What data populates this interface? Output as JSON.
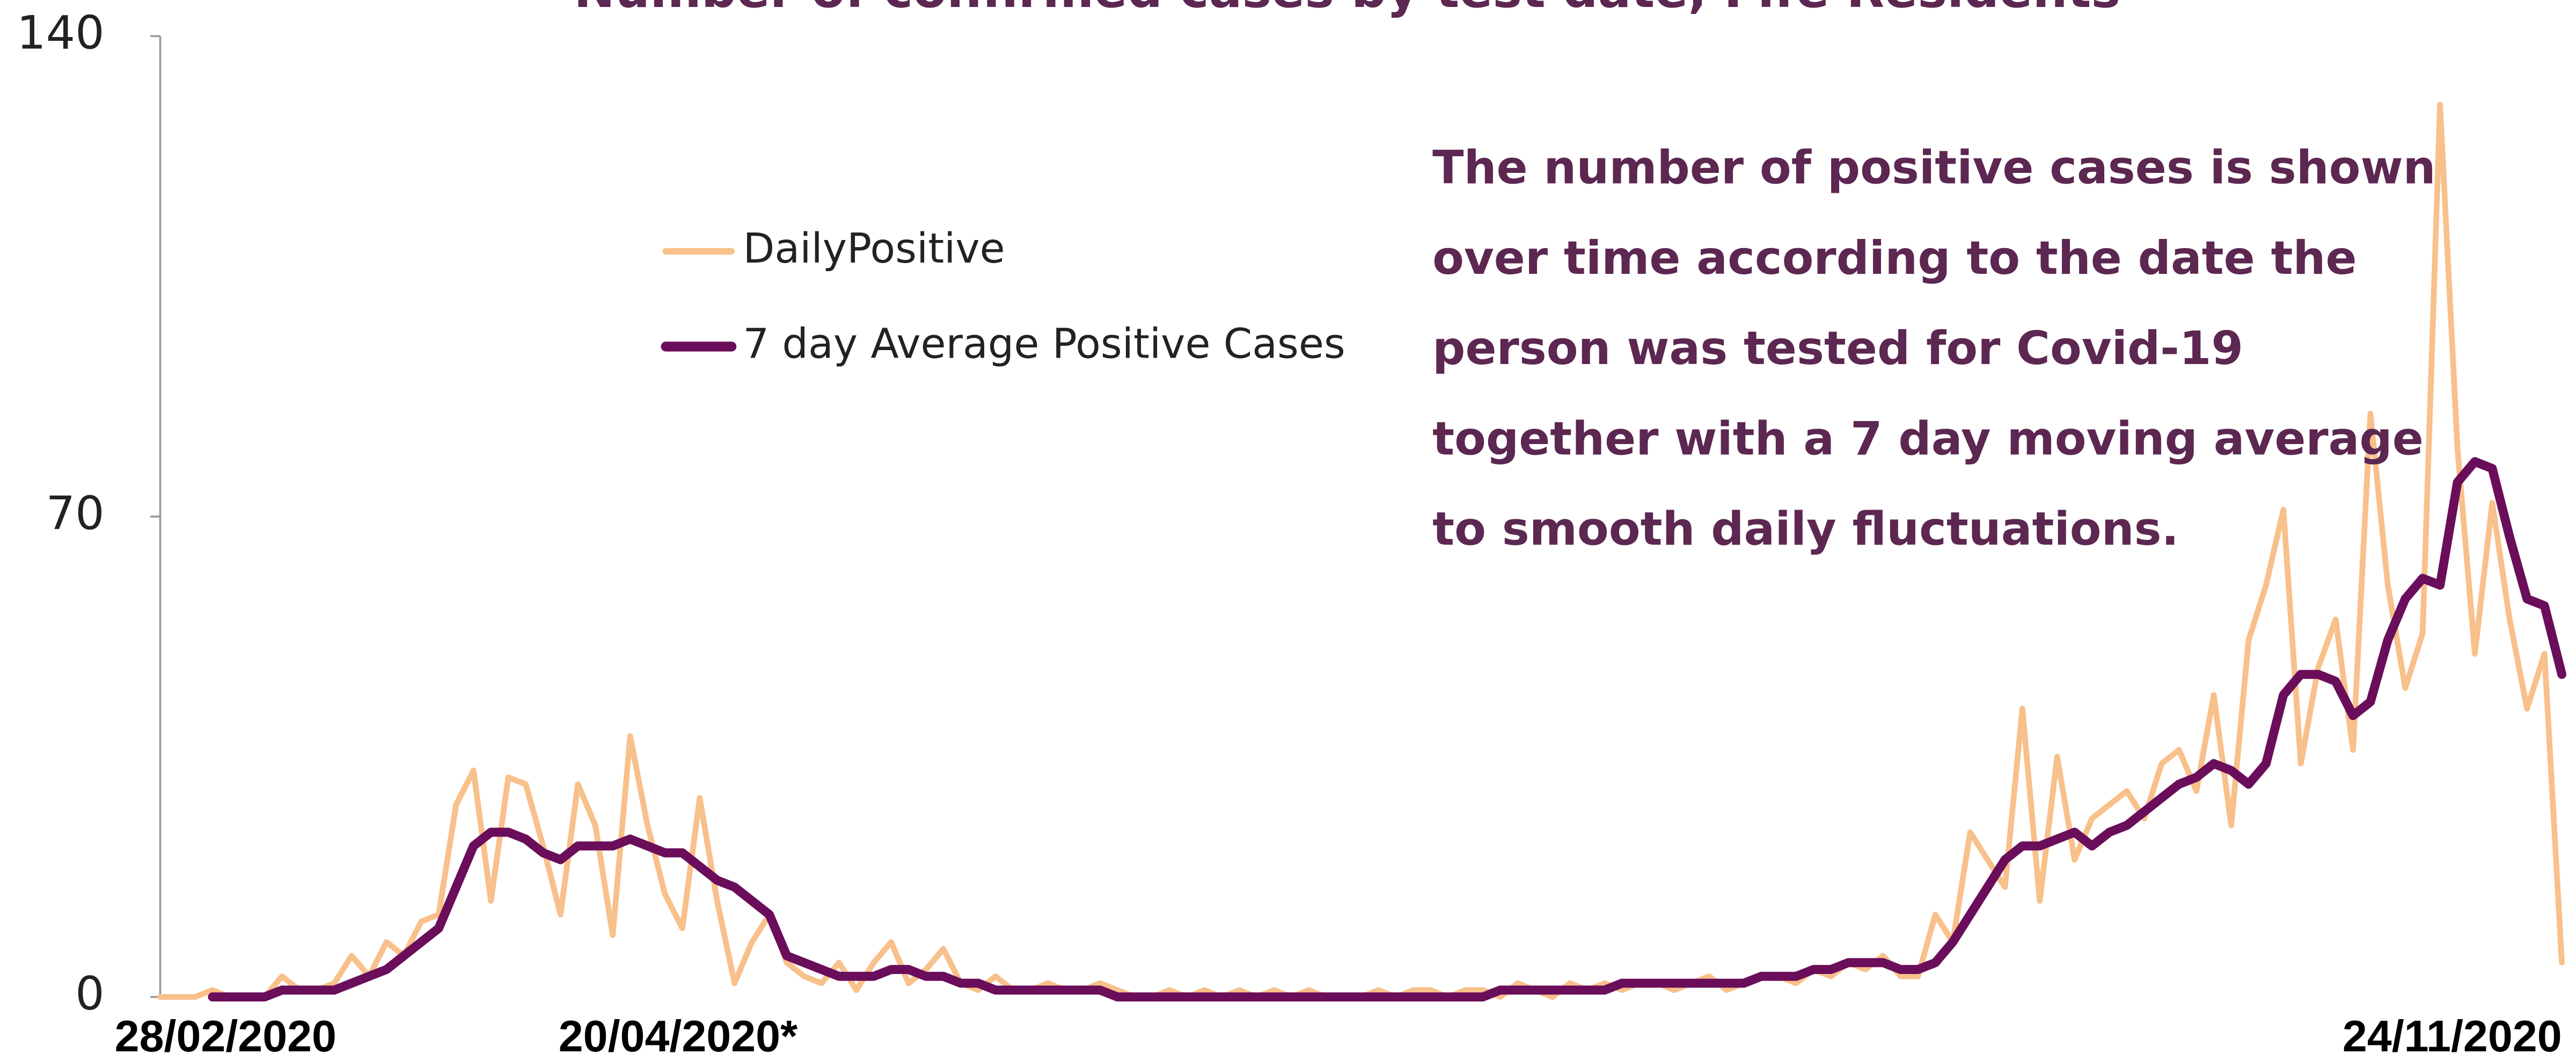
{
  "chart_data": {
    "type": "line",
    "title": "Number of confirmed cases by test date, Fife Residents",
    "annotation": [
      "The number of positive cases is shown",
      "over time according to the date the",
      "person was tested for Covid-19",
      "together with a 7 day moving average",
      "to smooth daily fluctuations."
    ],
    "categories": [
      null,
      null,
      null,
      "28/02/2020",
      null,
      null,
      null,
      null,
      null,
      null,
      null,
      null,
      null,
      null,
      null,
      null,
      null,
      null,
      null,
      null,
      null,
      null,
      null,
      null,
      null,
      null,
      null,
      null,
      null,
      "20/04/2020*",
      null,
      null,
      null,
      null,
      null,
      null,
      null,
      null,
      null,
      null,
      null,
      null,
      null,
      null,
      null,
      null,
      null,
      null,
      null,
      null,
      null,
      null,
      null,
      null,
      null,
      null,
      null,
      null,
      null,
      null,
      null,
      null,
      null,
      null,
      null,
      null,
      null,
      null,
      null,
      null,
      null,
      null,
      null,
      null,
      null,
      null,
      null,
      null,
      null,
      null,
      null,
      null,
      null,
      null,
      null,
      null,
      null,
      null,
      null,
      null,
      null,
      null,
      null,
      null,
      null,
      null,
      null,
      null,
      null,
      null,
      null,
      null,
      null,
      null,
      null,
      null,
      null,
      null,
      null,
      null,
      null,
      null,
      null,
      null,
      null,
      null,
      null,
      null,
      null,
      null,
      null,
      null,
      null,
      null,
      null,
      null,
      null,
      null,
      null,
      null,
      null,
      null,
      null,
      null,
      null,
      null,
      null,
      null,
      "24/11/2020"
    ],
    "series": [
      {
        "name": "DailyPositive",
        "color": "#f8c08a",
        "values": [
          0,
          0,
          0,
          1,
          0,
          0,
          0,
          3,
          1,
          1,
          2,
          6,
          3,
          8,
          6,
          11,
          12,
          28,
          33,
          14,
          32,
          31,
          22,
          12,
          31,
          25,
          9,
          38,
          25,
          15,
          10,
          29,
          14,
          2,
          8,
          12,
          5,
          3,
          2,
          5,
          1,
          5,
          8,
          2,
          4,
          7,
          2,
          1,
          3,
          1,
          1,
          2,
          1,
          1,
          2,
          1,
          0,
          0,
          1,
          0,
          1,
          0,
          1,
          0,
          1,
          0,
          1,
          0,
          0,
          0,
          1,
          0,
          1,
          1,
          0,
          1,
          1,
          0,
          2,
          1,
          0,
          2,
          1,
          2,
          1,
          2,
          2,
          1,
          2,
          3,
          1,
          2,
          3,
          3,
          2,
          4,
          3,
          5,
          4,
          6,
          3,
          3,
          12,
          8,
          24,
          20,
          16,
          42,
          14,
          35,
          20,
          26,
          28,
          30,
          26,
          34,
          36,
          30,
          44,
          25,
          52,
          60,
          71,
          34,
          48,
          55,
          36,
          85,
          60,
          45,
          53,
          130,
          80,
          50,
          72,
          55,
          42,
          50,
          5
        ]
      },
      {
        "name": "7 day Average Positive Cases",
        "color": "#6a0d5a",
        "values": [
          null,
          null,
          null,
          0,
          0,
          0,
          0,
          1,
          1,
          1,
          1,
          2,
          3,
          4,
          6,
          8,
          10,
          16,
          22,
          24,
          24,
          23,
          21,
          20,
          22,
          22,
          22,
          23,
          22,
          21,
          21,
          19,
          17,
          16,
          14,
          12,
          6,
          5,
          4,
          3,
          3,
          3,
          4,
          4,
          3,
          3,
          2,
          2,
          1,
          1,
          1,
          1,
          1,
          1,
          1,
          0,
          0,
          0,
          0,
          0,
          0,
          0,
          0,
          0,
          0,
          0,
          0,
          0,
          0,
          0,
          0,
          0,
          0,
          0,
          0,
          0,
          0,
          1,
          1,
          1,
          1,
          1,
          1,
          1,
          2,
          2,
          2,
          2,
          2,
          2,
          2,
          2,
          3,
          3,
          3,
          4,
          4,
          5,
          5,
          5,
          4,
          4,
          5,
          8,
          12,
          16,
          20,
          22,
          22,
          23,
          24,
          22,
          24,
          25,
          27,
          29,
          31,
          32,
          34,
          33,
          31,
          34,
          44,
          47,
          47,
          46,
          41,
          43,
          52,
          58,
          61,
          60,
          75,
          78,
          77,
          67,
          58,
          57,
          47
        ]
      }
    ],
    "ylim": [
      0,
      140
    ],
    "yticks": [
      0,
      70,
      140
    ],
    "grid": false
  }
}
